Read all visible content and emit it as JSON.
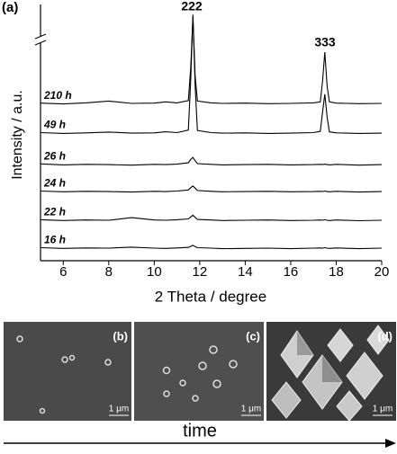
{
  "chart_data": {
    "type": "line",
    "panel_label": "(a)",
    "xlabel": "2 Theta / degree",
    "ylabel": "Intensity / a.u.",
    "x": [
      5,
      6,
      7,
      8,
      9,
      10,
      10.5,
      11,
      11.5,
      11.6,
      11.7,
      11.8,
      11.9,
      12.5,
      13,
      14,
      15,
      16,
      17,
      17.3,
      17.4,
      17.5,
      17.6,
      17.7,
      18,
      19,
      20
    ],
    "xlim": [
      5,
      20
    ],
    "xticks": [
      6,
      8,
      10,
      12,
      14,
      16,
      18,
      20
    ],
    "ylim": [
      0,
      100
    ],
    "series": [
      {
        "name": "210 h",
        "color": "#000000",
        "values": [
          61.5,
          61.2,
          61.6,
          62.3,
          61.4,
          61.5,
          62.0,
          61.6,
          62.5,
          75,
          95,
          72,
          62.3,
          61.6,
          61.4,
          61.5,
          61.3,
          61.4,
          61.6,
          62,
          70,
          81.4,
          68,
          62,
          61.5,
          61.3,
          61.4
        ]
      },
      {
        "name": "49 h",
        "color": "#000000",
        "values": [
          50,
          49.7,
          49.9,
          50.2,
          49.8,
          49.9,
          50.3,
          50,
          51,
          70,
          96,
          68,
          50.8,
          50,
          49.8,
          49.9,
          49.7,
          49.8,
          50,
          50.5,
          58,
          65,
          56,
          50.3,
          49.9,
          49.7,
          49.8
        ]
      },
      {
        "name": "26 h",
        "color": "#000000",
        "values": [
          37.8,
          37.4,
          37.6,
          37.5,
          37.3,
          37.6,
          37.5,
          37.7,
          38.2,
          39.5,
          40.3,
          39,
          37.9,
          37.6,
          37.4,
          37.5,
          37.6,
          37.4,
          37.5,
          37.6,
          37.5,
          37.7,
          37.5,
          37.4,
          37.6,
          37.3,
          37.5
        ]
      },
      {
        "name": "24 h",
        "color": "#000000",
        "values": [
          27.2,
          26.9,
          27.1,
          27,
          26.8,
          27.1,
          27,
          27.2,
          27.6,
          28.5,
          29.2,
          28.3,
          27.4,
          27.1,
          26.9,
          27,
          27.1,
          26.9,
          27,
          27.1,
          27,
          27.2,
          27,
          26.9,
          27.1,
          26.8,
          27
        ]
      },
      {
        "name": "22 h",
        "color": "#000000",
        "values": [
          16,
          15.7,
          15.9,
          15.8,
          16.8,
          15.9,
          15.8,
          16,
          16.3,
          17.1,
          17.8,
          16.9,
          16.1,
          15.9,
          15.7,
          15.8,
          15.9,
          15.7,
          15.8,
          15.9,
          15.8,
          16,
          15.8,
          15.7,
          15.9,
          15.6,
          15.8
        ]
      },
      {
        "name": "16 h",
        "color": "#000000",
        "values": [
          5.1,
          4.8,
          5,
          4.9,
          5.3,
          4.9,
          4.8,
          5,
          5.2,
          5.6,
          6,
          5.5,
          5.1,
          4.9,
          4.7,
          4.8,
          4.9,
          4.7,
          4.9,
          5,
          4.9,
          5.1,
          4.9,
          4.8,
          5,
          4.7,
          4.9
        ]
      }
    ],
    "annotations": [
      "222",
      "333"
    ]
  },
  "images": [
    {
      "label": "(b)",
      "scale": "1 μm"
    },
    {
      "label": "(c)",
      "scale": "1 μm"
    },
    {
      "label": "(d)",
      "scale": "1 μm"
    }
  ],
  "time_label": "time"
}
